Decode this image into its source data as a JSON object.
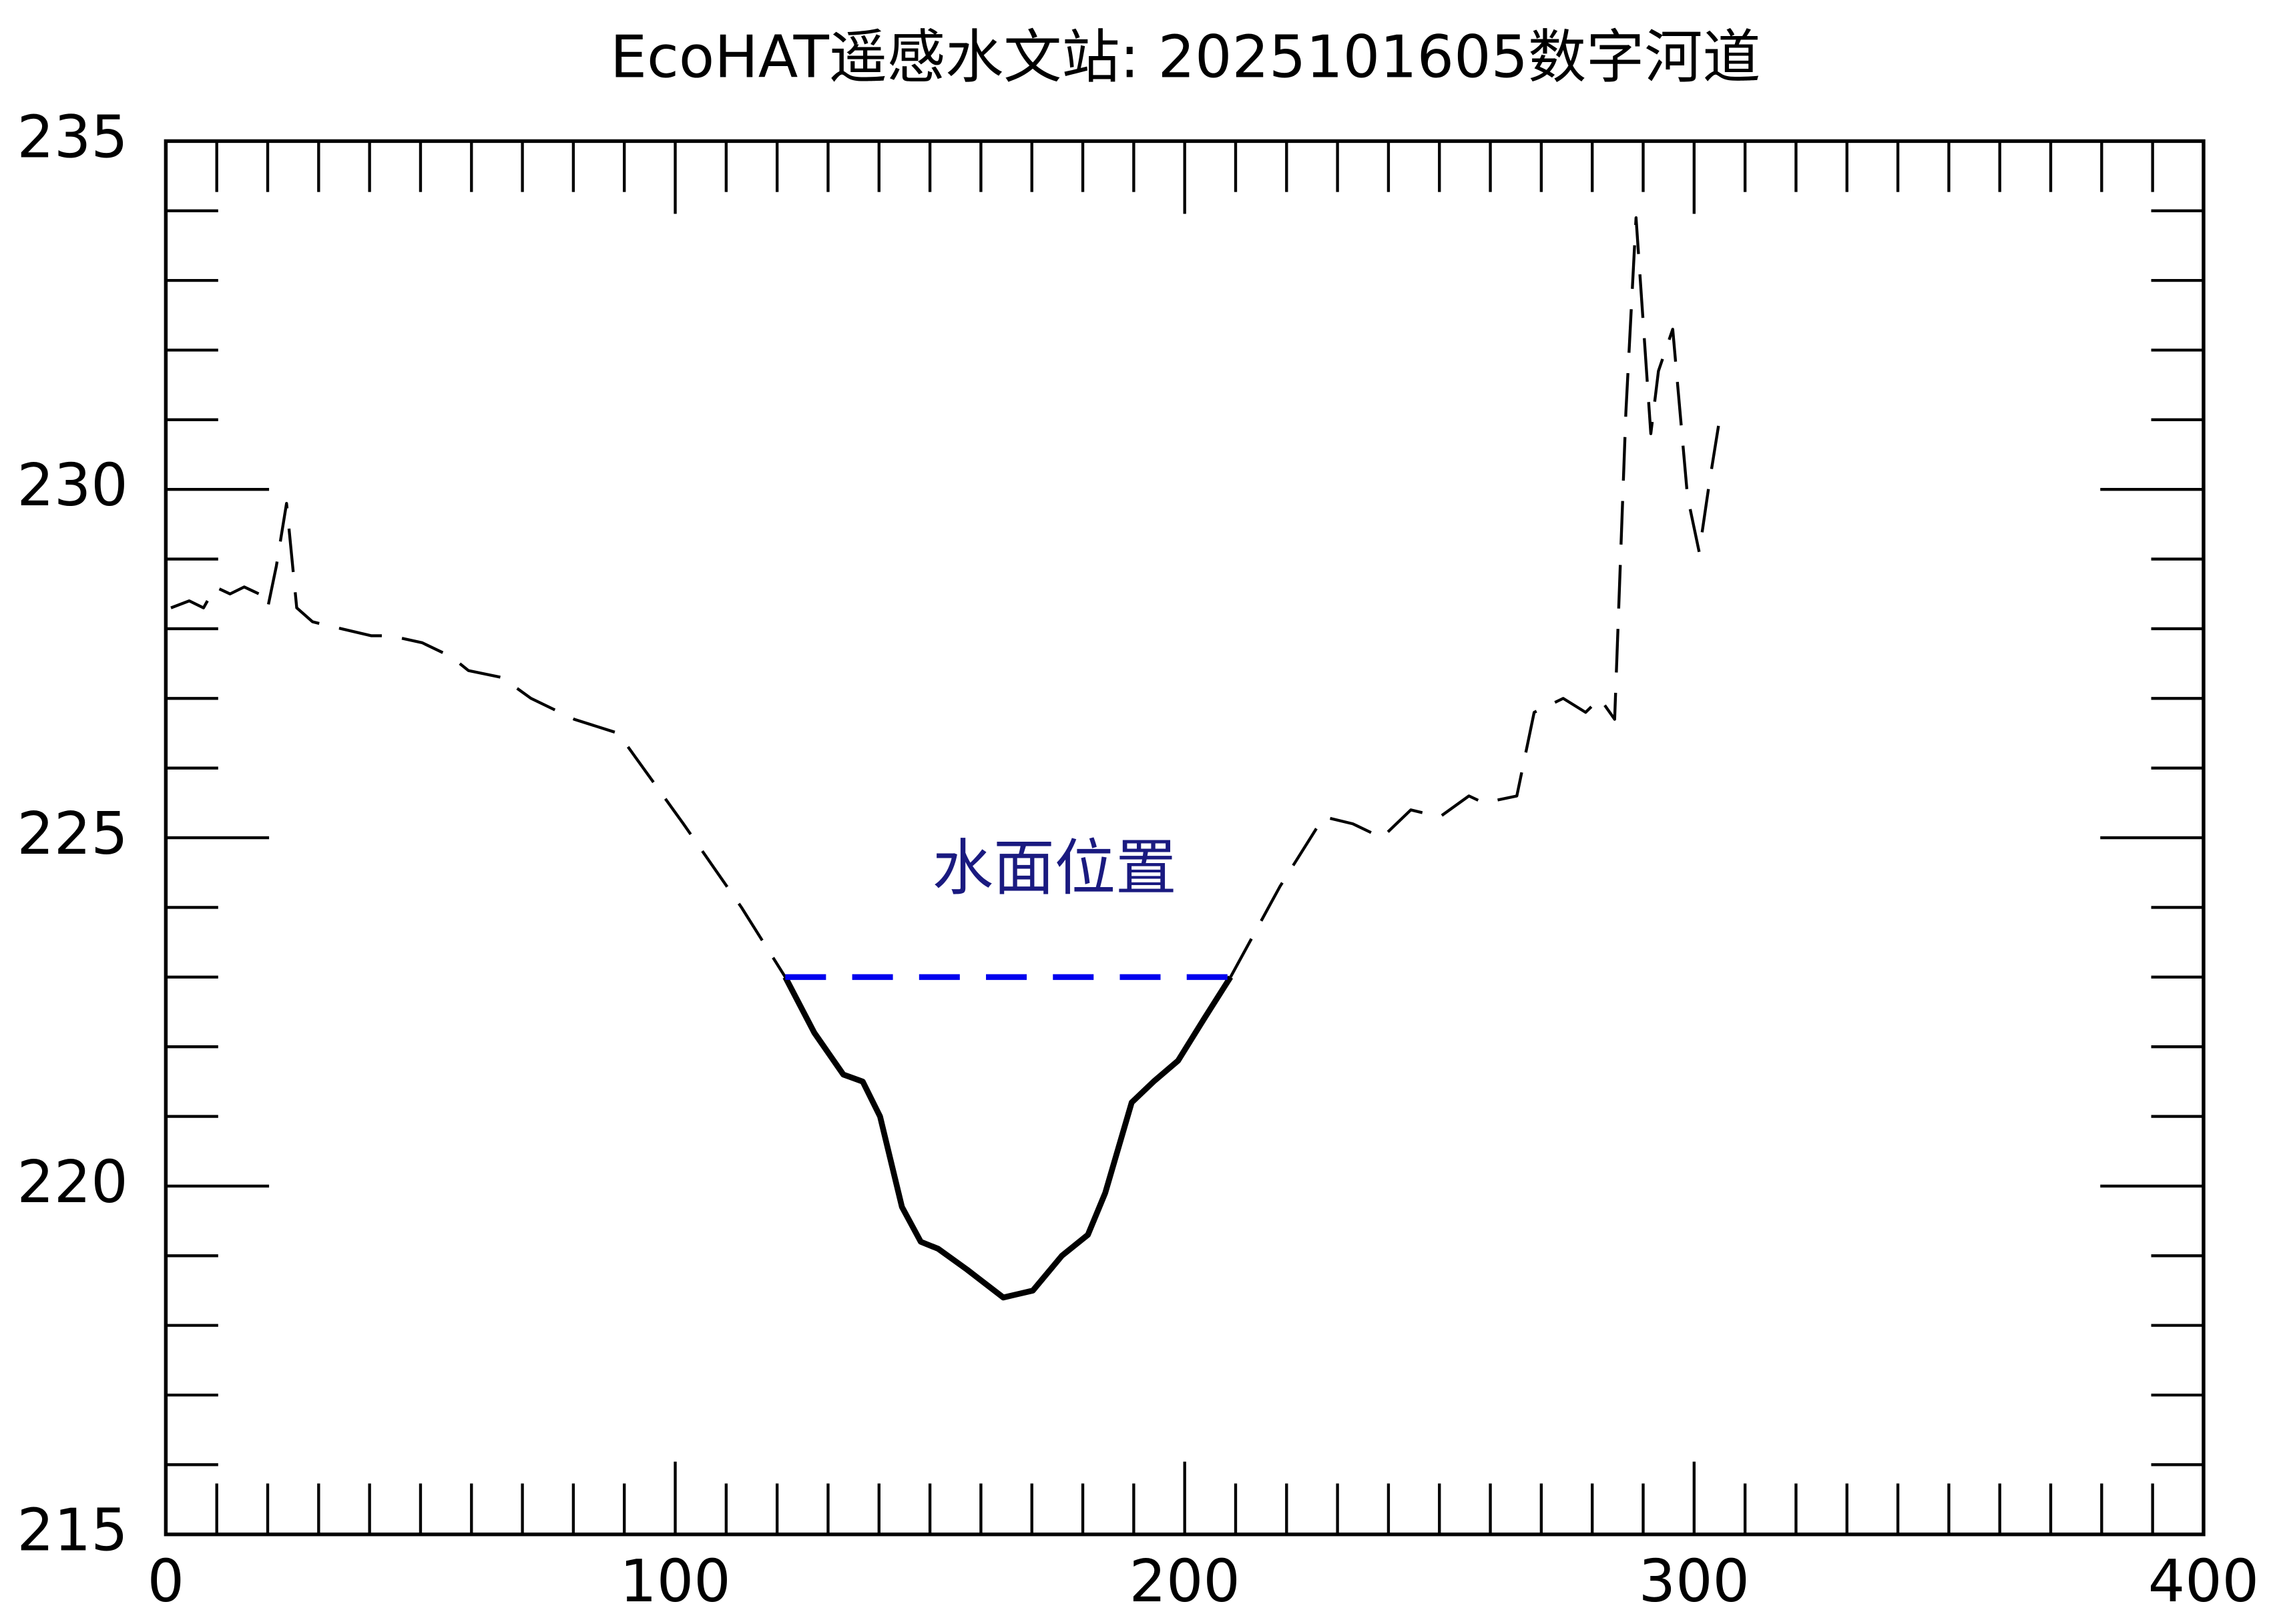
{
  "chart_data": {
    "type": "line",
    "title": "EcoHAT遥感水文站: 2025101605数字河道",
    "annotation": "水面位置",
    "annotation_color": "#1a1a80",
    "series": [
      {
        "color": "#000000",
        "style": "dashed",
        "width": 2,
        "x": [
          1,
          4.6,
          7.4,
          9.7,
          12.6,
          15.4,
          18.3,
          20,
          21.7,
          23.7,
          25.7,
          28.8,
          34.5,
          40.3,
          44,
          50.3,
          56,
          59.4,
          66,
          71.7,
          80.2,
          88.8,
          101.6,
          113,
          121.6,
          165,
          209,
          218.7,
          227.3,
          233,
          238.7,
          244.4,
          250.1,
          255.8,
          258.7,
          265.2,
          268.6,
          274.3,
          278.7,
          281.5,
          284.4,
          286.6,
          288.6,
          291.5,
          293,
          295.8,
          298.7,
          301,
          303,
          305.2
        ],
        "values": [
          228.3,
          228.4,
          228.3,
          228.6,
          228.5,
          228.6,
          228.5,
          228.3,
          228.9,
          229.8,
          228.3,
          228.1,
          228.0,
          227.9,
          227.9,
          227.8,
          227.6,
          227.4,
          227.3,
          227.0,
          226.7,
          226.5,
          225.2,
          224.0,
          223.0,
          null,
          223.0,
          224.3,
          225.3,
          225.2,
          225.0,
          225.4,
          225.3,
          225.6,
          225.5,
          225.6,
          226.8,
          227.0,
          226.8,
          227.0,
          226.7,
          231.1,
          233.9,
          230.8,
          231.7,
          232.3,
          229.9,
          229.1,
          230.1,
          231.1
        ]
      },
      {
        "color": "#000000",
        "style": "solid",
        "width": 4,
        "x": [
          121.6,
          127.3,
          133,
          136.8,
          140.2,
          144.5,
          148.2,
          151.6,
          157.3,
          164.4,
          170.2,
          175.9,
          181,
          184.4,
          189.6,
          193.9,
          198.7,
          203.8,
          209
        ],
        "values": [
          223.0,
          222.2,
          221.6,
          221.5,
          221.0,
          219.7,
          219.2,
          219.1,
          218.8,
          218.4,
          218.5,
          219.0,
          219.3,
          219.9,
          221.2,
          221.5,
          221.8,
          222.4,
          223.0
        ]
      },
      {
        "color": "#0000ee",
        "style": "dashed",
        "width": 4,
        "x": [
          121.6,
          209
        ],
        "values": [
          223.0,
          223.0
        ]
      }
    ],
    "xlim": [
      0,
      400
    ],
    "xticks": [
      0,
      100,
      200,
      300,
      400
    ],
    "xminorticks": [
      10,
      20,
      30,
      40,
      50,
      60,
      70,
      80,
      90,
      110,
      120,
      130,
      140,
      150,
      160,
      170,
      180,
      190,
      210,
      220,
      230,
      240,
      250,
      260,
      270,
      280,
      290,
      310,
      320,
      330,
      340,
      350,
      360,
      370,
      380,
      390
    ],
    "ylim": [
      215,
      235
    ],
    "yticks": [
      215,
      220,
      225,
      230,
      235
    ],
    "yminorticks": [
      216,
      217,
      218,
      219,
      221,
      222,
      223,
      224,
      226,
      227,
      228,
      229,
      231,
      232,
      233,
      234
    ]
  }
}
